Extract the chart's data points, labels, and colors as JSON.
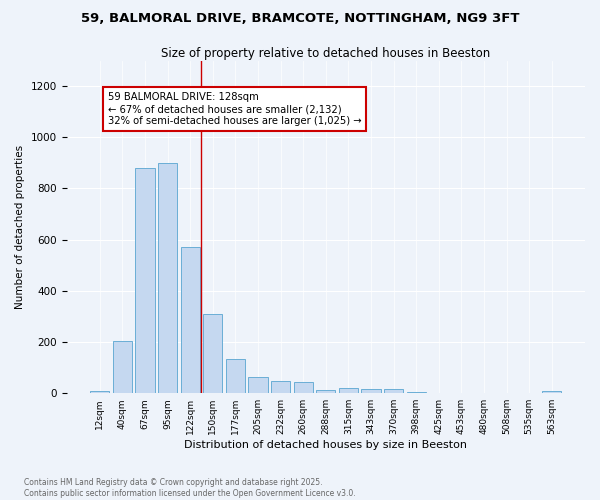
{
  "title": "59, BALMORAL DRIVE, BRAMCOTE, NOTTINGHAM, NG9 3FT",
  "subtitle": "Size of property relative to detached houses in Beeston",
  "xlabel": "Distribution of detached houses by size in Beeston",
  "ylabel": "Number of detached properties",
  "bar_color": "#c5d8f0",
  "bar_edge_color": "#6aaed6",
  "background_color": "#eef3fa",
  "categories": [
    "12sqm",
    "40sqm",
    "67sqm",
    "95sqm",
    "122sqm",
    "150sqm",
    "177sqm",
    "205sqm",
    "232sqm",
    "260sqm",
    "288sqm",
    "315sqm",
    "343sqm",
    "370sqm",
    "398sqm",
    "425sqm",
    "453sqm",
    "480sqm",
    "508sqm",
    "535sqm",
    "563sqm"
  ],
  "values": [
    10,
    205,
    880,
    900,
    570,
    310,
    135,
    62,
    47,
    42,
    13,
    20,
    15,
    15,
    5,
    2,
    2,
    1,
    0,
    1,
    10
  ],
  "vline_x": 4.5,
  "vline_color": "#cc0000",
  "annotation_text": "59 BALMORAL DRIVE: 128sqm\n← 67% of detached houses are smaller (2,132)\n32% of semi-detached houses are larger (1,025) →",
  "annotation_box_color": "#ffffff",
  "annotation_box_edge": "#cc0000",
  "ylim": [
    0,
    1300
  ],
  "yticks": [
    0,
    200,
    400,
    600,
    800,
    1000,
    1200
  ],
  "footer_text": "Contains HM Land Registry data © Crown copyright and database right 2025.\nContains public sector information licensed under the Open Government Licence v3.0."
}
